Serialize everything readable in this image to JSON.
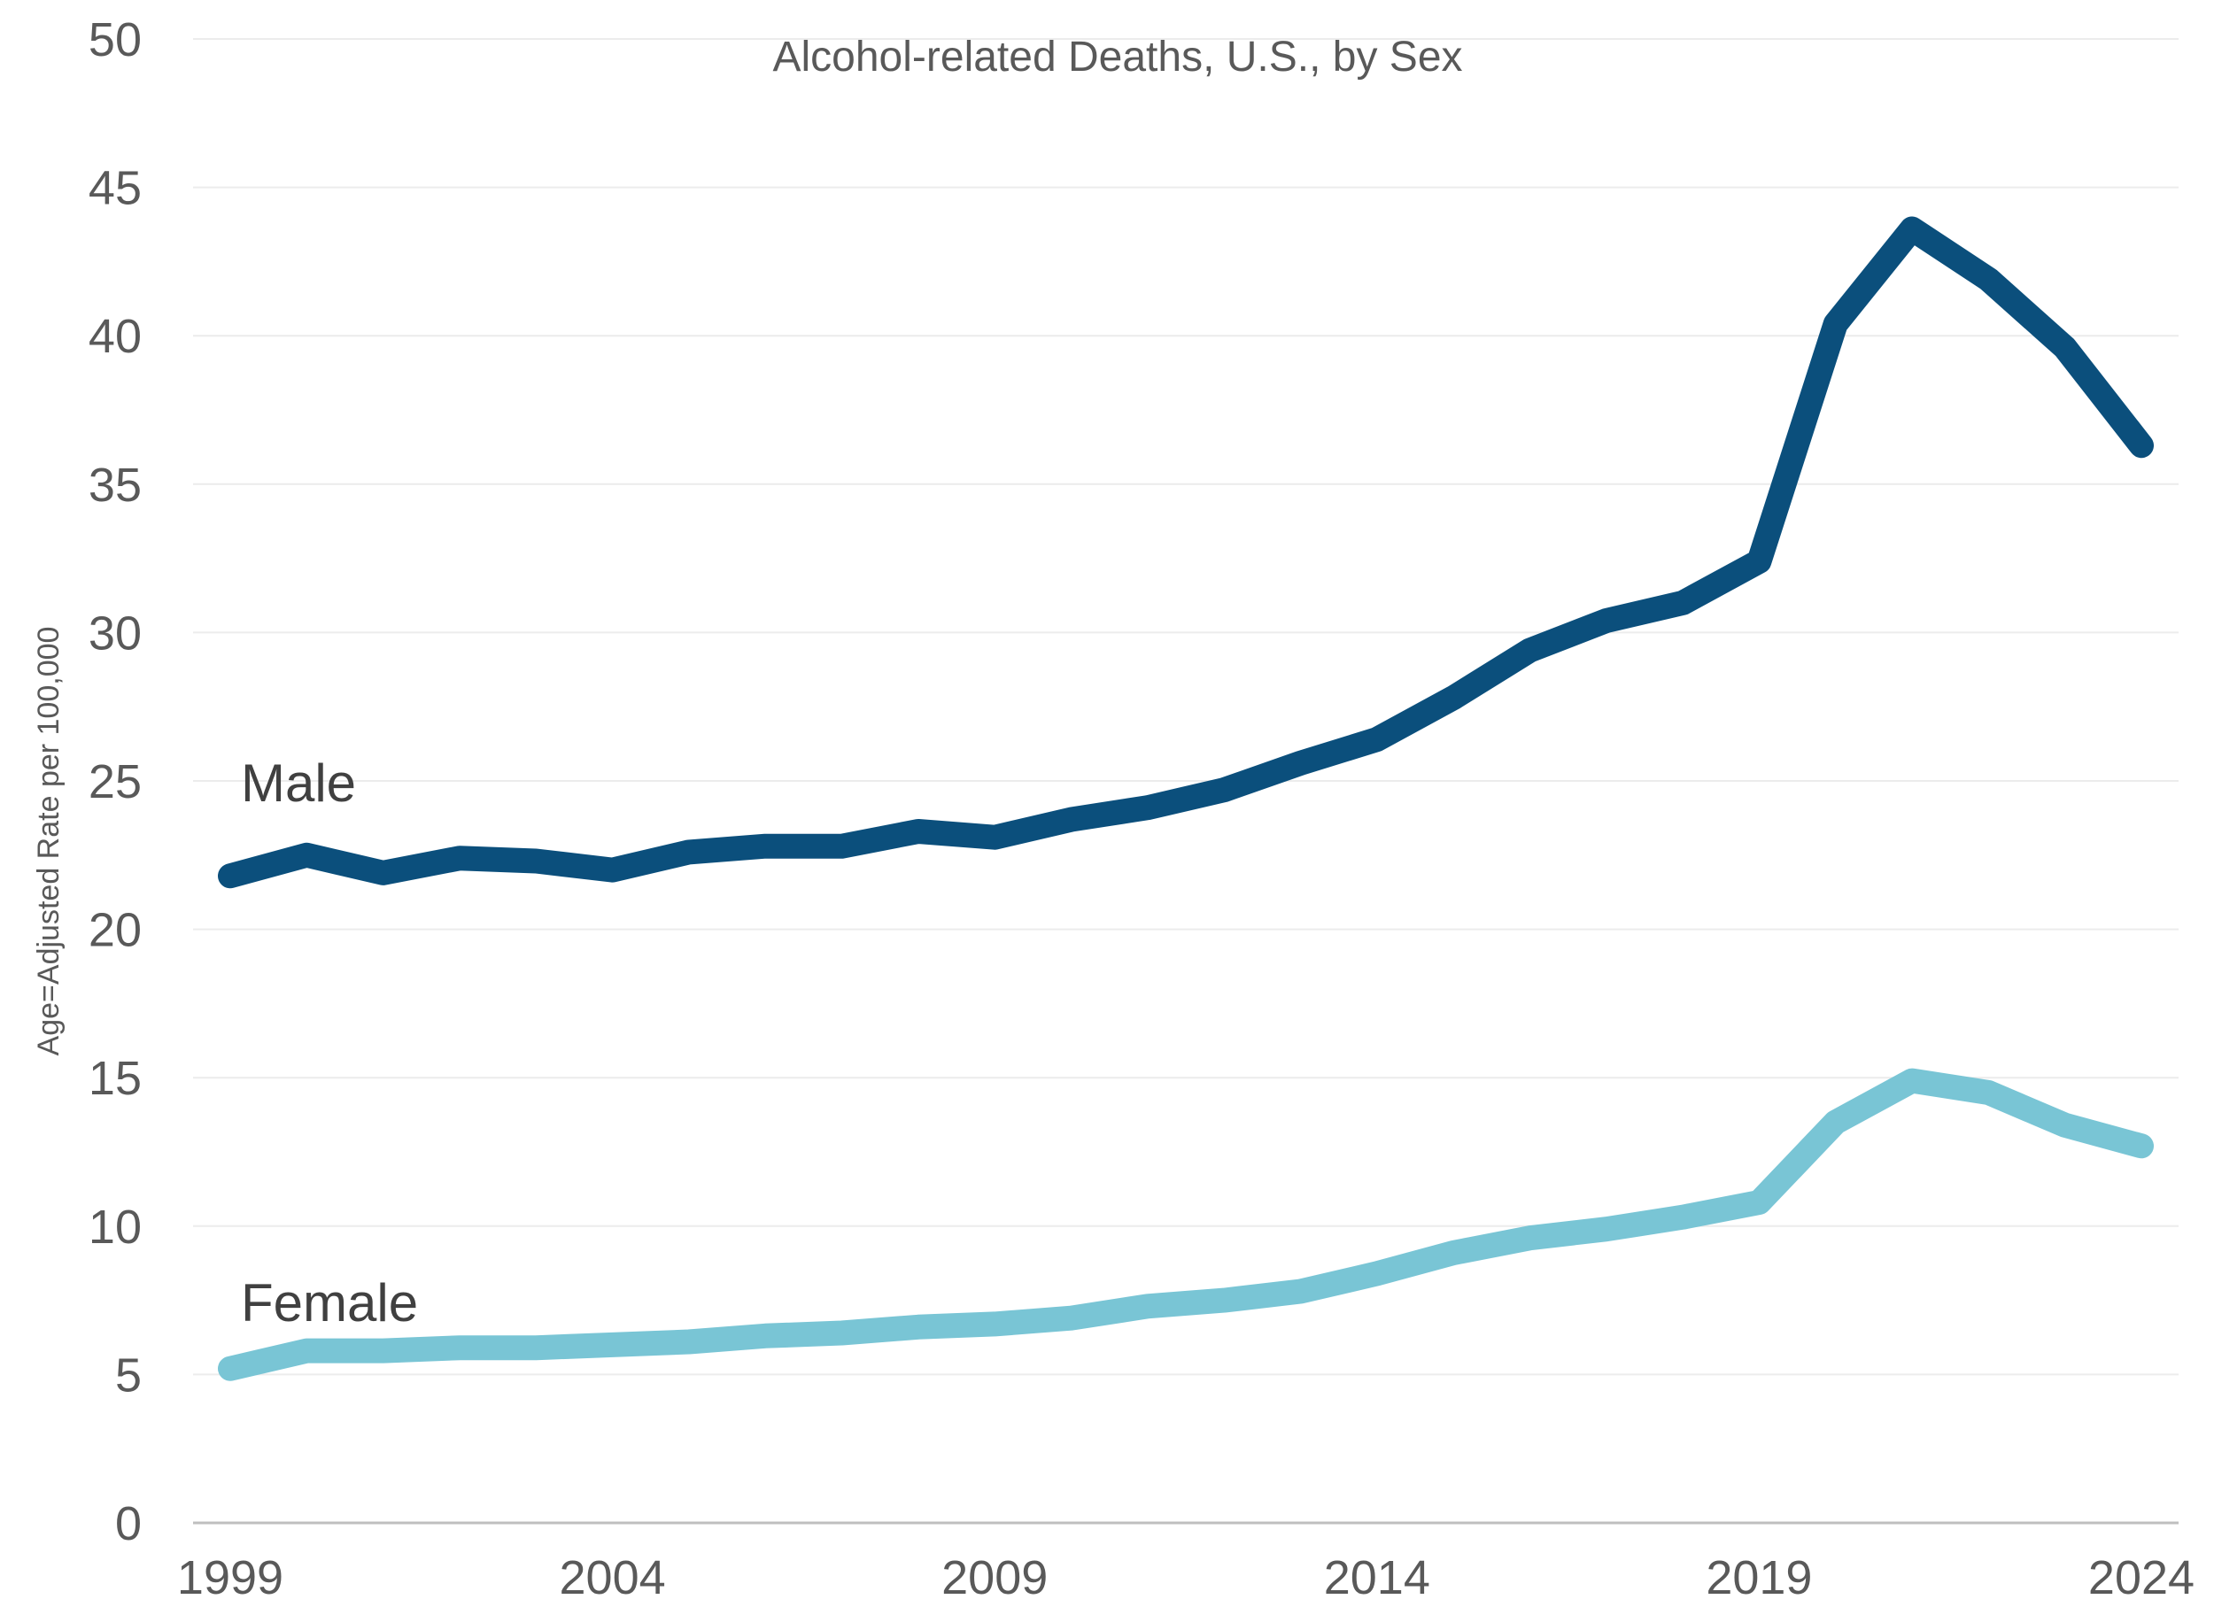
{
  "chart_data": {
    "type": "line",
    "title": "Alcohol-related Deaths, U.S., by Sex",
    "xlabel": "",
    "ylabel": "Age=Adjusted Rate per 100,000",
    "x": [
      1999,
      2000,
      2001,
      2002,
      2003,
      2004,
      2005,
      2006,
      2007,
      2008,
      2009,
      2010,
      2011,
      2012,
      2013,
      2014,
      2015,
      2016,
      2017,
      2018,
      2019,
      2020,
      2021,
      2022,
      2023,
      2024
    ],
    "x_tick_labels": [
      "1999",
      "2004",
      "2009",
      "2014",
      "2019",
      "2024"
    ],
    "x_ticks": [
      1999,
      2004,
      2009,
      2014,
      2019,
      2024
    ],
    "xlim": [
      1999,
      2024
    ],
    "ylim": [
      0,
      50
    ],
    "y_ticks": [
      0,
      5,
      10,
      15,
      20,
      25,
      30,
      35,
      40,
      45,
      50
    ],
    "y_tick_labels": [
      "0",
      "5",
      "10",
      "15",
      "20",
      "25",
      "30",
      "35",
      "40",
      "45",
      "50"
    ],
    "grid": true,
    "series": [
      {
        "name": "Male",
        "color": "#0b4f7c",
        "values": [
          21.8,
          22.5,
          21.9,
          22.4,
          22.3,
          22.0,
          22.6,
          22.8,
          22.8,
          23.3,
          23.1,
          23.7,
          24.1,
          24.7,
          25.6,
          26.4,
          27.8,
          29.4,
          30.4,
          31.0,
          32.4,
          40.4,
          43.6,
          41.9,
          39.6,
          36.3
        ]
      },
      {
        "name": "Female",
        "color": "#79c5d5",
        "values": [
          5.2,
          5.8,
          5.8,
          5.9,
          5.9,
          6.0,
          6.1,
          6.3,
          6.4,
          6.6,
          6.7,
          6.9,
          7.3,
          7.5,
          7.8,
          8.4,
          9.1,
          9.6,
          9.9,
          10.3,
          10.8,
          13.5,
          14.9,
          14.5,
          13.4,
          12.7
        ]
      }
    ]
  }
}
